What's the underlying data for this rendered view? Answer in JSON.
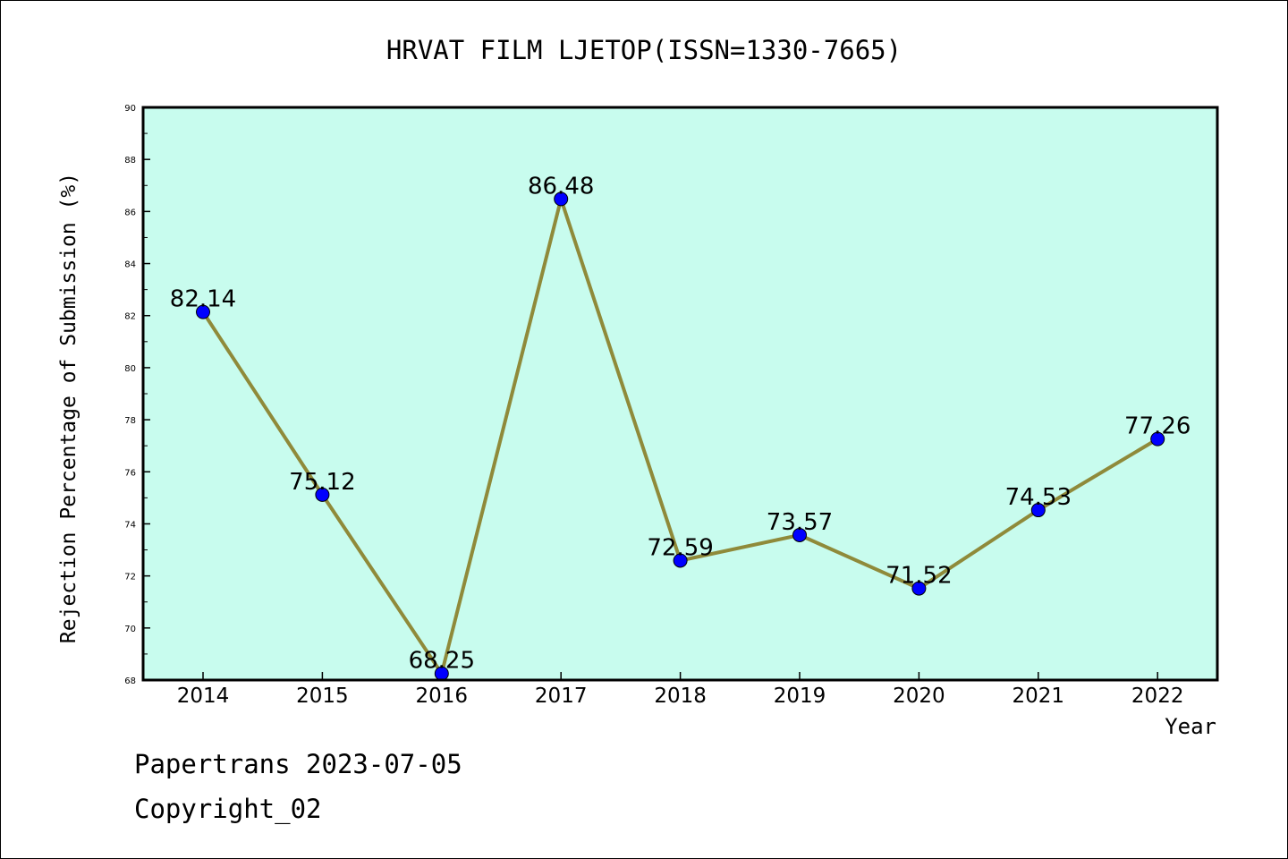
{
  "chart_data": {
    "type": "line",
    "title": "HRVAT FILM LJETOP(ISSN=1330-7665)",
    "xlabel": "Year",
    "ylabel": "Rejection Percentage of Submission (%)",
    "categories": [
      "2014",
      "2015",
      "2016",
      "2017",
      "2018",
      "2019",
      "2020",
      "2021",
      "2022"
    ],
    "values": [
      82.14,
      75.12,
      68.25,
      86.48,
      72.59,
      73.57,
      71.52,
      74.53,
      77.26
    ],
    "data_labels": [
      "82.14",
      "75.12",
      "68.25",
      "86.48",
      "72.59",
      "73.57",
      "71.52",
      "74.53",
      "77.26"
    ],
    "ylim": [
      68,
      90
    ],
    "yticks": [
      68,
      70,
      72,
      74,
      76,
      78,
      80,
      82,
      84,
      86,
      88,
      90
    ],
    "grid": false,
    "legend": "none",
    "colors": {
      "plot_background": "#c8fcee",
      "line": "#8f8a3a",
      "marker": "#0000ff"
    }
  },
  "footer": {
    "line1": "Papertrans 2023-07-05",
    "line2": "Copyright_02"
  }
}
